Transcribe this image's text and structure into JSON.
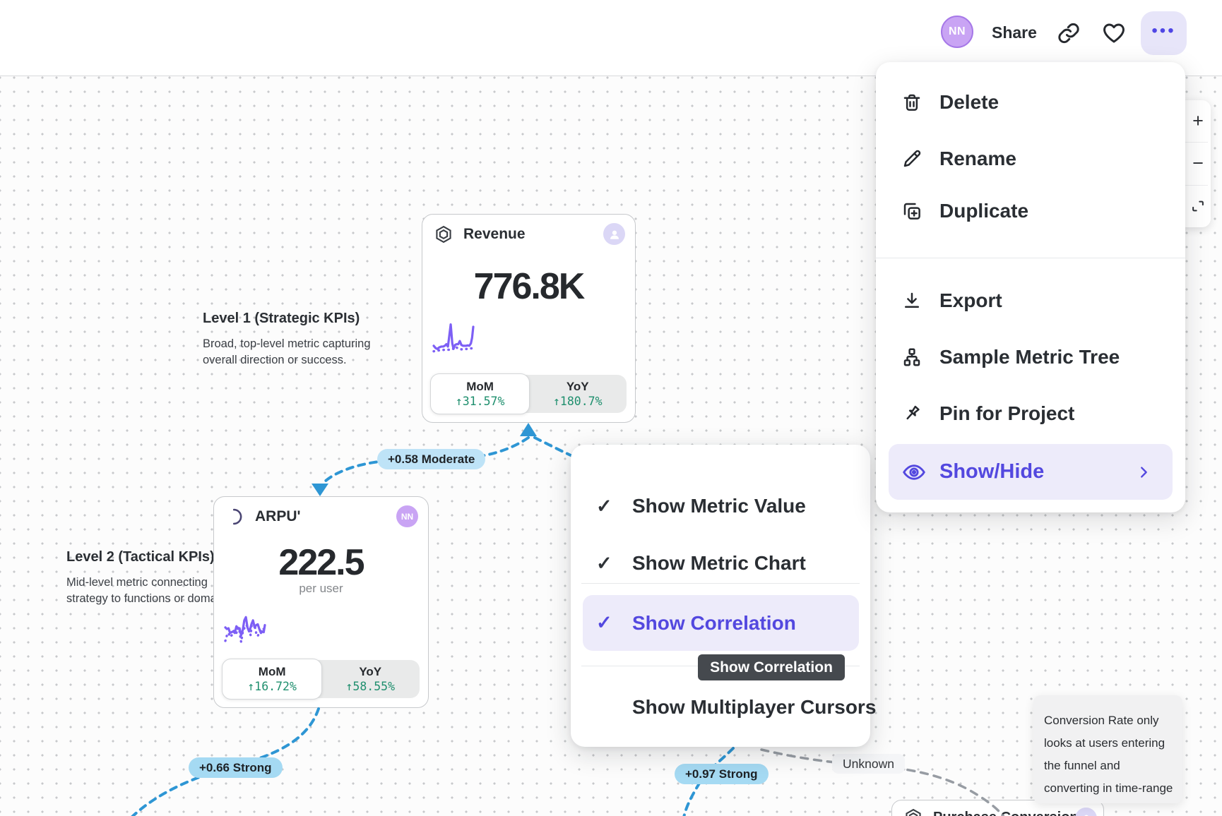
{
  "header": {
    "avatar_initials": "NN",
    "share_label": "Share",
    "more_label": "•••"
  },
  "menu": {
    "items": [
      {
        "label": "Delete"
      },
      {
        "label": "Rename"
      },
      {
        "label": "Duplicate"
      },
      {
        "label": "Export"
      },
      {
        "label": "Sample Metric Tree"
      },
      {
        "label": "Pin for Project"
      },
      {
        "label": "Show/Hide"
      }
    ]
  },
  "submenu": {
    "items": [
      {
        "label": "Show Metric Value",
        "check": "✓"
      },
      {
        "label": "Show Metric Chart",
        "check": "✓"
      },
      {
        "label": "Show Correlation",
        "check": "✓"
      },
      {
        "label": "Show Multiplayer Cursors",
        "check": ""
      }
    ],
    "tooltip": "Show Correlation"
  },
  "zoom_controls": {
    "zoom_in": "+",
    "zoom_out": "−"
  },
  "canvas": {
    "level1_title": "Level 1 (Strategic KPIs)",
    "level1_desc": "Broad, top-level metric capturing overall direction or success.",
    "level2_title": "Level 2 (Tactical KPIs)",
    "level2_desc": "Mid-level metric connecting strategy to functions or domains.",
    "correlations": {
      "c1": "+0.58 Moderate",
      "c2": "+0.66 Strong",
      "c3": "+0.97 Strong",
      "c4": "Unknown"
    },
    "note_lines": [
      "Conversion Rate only",
      "looks at users entering",
      "the funnel and",
      "converting in time-range"
    ],
    "cards": {
      "revenue": {
        "title": "Revenue",
        "value": "776.8K",
        "mom_label": "MoM",
        "mom_value": "↑31.57%",
        "yoy_label": "YoY",
        "yoy_value": "↑180.7%",
        "spark": {
          "solid": [
            [
              0,
              64
            ],
            [
              5,
              70
            ],
            [
              9,
              72
            ],
            [
              14,
              68
            ],
            [
              19,
              66
            ],
            [
              24,
              66
            ],
            [
              28,
              64
            ],
            [
              32,
              60
            ],
            [
              36,
              66
            ],
            [
              40,
              34
            ],
            [
              43,
              10
            ],
            [
              47,
              58
            ],
            [
              50,
              72
            ],
            [
              54,
              62
            ],
            [
              58,
              60
            ],
            [
              62,
              60
            ],
            [
              66,
              52
            ],
            [
              70,
              62
            ],
            [
              74,
              64
            ],
            [
              78,
              64
            ],
            [
              82,
              64
            ],
            [
              86,
              63
            ],
            [
              90,
              64
            ],
            [
              94,
              58
            ],
            [
              97,
              44
            ],
            [
              100,
              16
            ]
          ],
          "dotted": [
            [
              0,
              78
            ],
            [
              10,
              76
            ],
            [
              20,
              75
            ],
            [
              30,
              74
            ],
            [
              40,
              74
            ],
            [
              48,
              73
            ],
            [
              55,
              66
            ],
            [
              60,
              70
            ],
            [
              68,
              73
            ],
            [
              76,
              73
            ],
            [
              84,
              72
            ],
            [
              92,
              71
            ],
            [
              100,
              70
            ]
          ]
        }
      },
      "arpu": {
        "title": "ARPU'",
        "value": "222.5",
        "unit": "per user",
        "avatar_initials": "NN",
        "mom_label": "MoM",
        "mom_value": "↑16.72%",
        "yoy_label": "YoY",
        "yoy_value": "↑58.55%",
        "spark": {
          "solid": [
            [
              0,
              48
            ],
            [
              4,
              52
            ],
            [
              8,
              50
            ],
            [
              12,
              62
            ],
            [
              16,
              60
            ],
            [
              20,
              58
            ],
            [
              24,
              62
            ],
            [
              28,
              45
            ],
            [
              32,
              52
            ],
            [
              36,
              50
            ],
            [
              40,
              68
            ],
            [
              44,
              55
            ],
            [
              48,
              30
            ],
            [
              52,
              22
            ],
            [
              56,
              48
            ],
            [
              60,
              58
            ],
            [
              62,
              55
            ],
            [
              66,
              40
            ],
            [
              70,
              30
            ],
            [
              74,
              48
            ],
            [
              78,
              42
            ],
            [
              82,
              40
            ],
            [
              86,
              52
            ],
            [
              90,
              62
            ],
            [
              94,
              58
            ],
            [
              97,
              60
            ],
            [
              100,
              42
            ]
          ],
          "dotted": [
            [
              0,
              82
            ],
            [
              4,
              68
            ],
            [
              8,
              62
            ],
            [
              12,
              72
            ],
            [
              16,
              68
            ],
            [
              20,
              58
            ],
            [
              24,
              55
            ],
            [
              28,
              62
            ],
            [
              32,
              48
            ],
            [
              36,
              58
            ],
            [
              40,
              85
            ],
            [
              44,
              60
            ],
            [
              48,
              50
            ],
            [
              52,
              42
            ],
            [
              56,
              45
            ],
            [
              60,
              52
            ],
            [
              64,
              68
            ],
            [
              66,
              45
            ],
            [
              70,
              35
            ],
            [
              74,
              42
            ],
            [
              78,
              62
            ],
            [
              82,
              70
            ],
            [
              86,
              60
            ],
            [
              90,
              55
            ],
            [
              94,
              50
            ],
            [
              97,
              52
            ],
            [
              100,
              55
            ]
          ]
        }
      },
      "purchase": {
        "title": "Purchase Conversion R"
      }
    }
  }
}
